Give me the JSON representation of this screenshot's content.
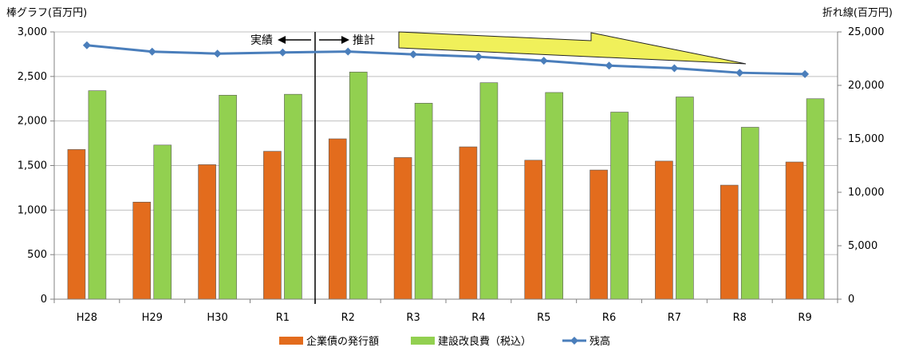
{
  "chart_data": {
    "type": "bar+line",
    "left_axis_title": "棒グラフ(百万円)",
    "right_axis_title": "折れ線(百万円)",
    "categories": [
      "H28",
      "H29",
      "H30",
      "R1",
      "R2",
      "R3",
      "R4",
      "R5",
      "R6",
      "R7",
      "R8",
      "R9"
    ],
    "left_ylim": [
      0,
      3000
    ],
    "left_ticks": [
      0,
      500,
      1000,
      1500,
      2000,
      2500,
      3000
    ],
    "left_tick_labels": [
      "0",
      "500",
      "1,000",
      "1,500",
      "2,000",
      "2,500",
      "3,000"
    ],
    "right_ylim": [
      0,
      25000
    ],
    "right_ticks": [
      0,
      5000,
      10000,
      15000,
      20000,
      25000
    ],
    "right_tick_labels": [
      "0",
      "5,000",
      "10,000",
      "15,000",
      "20,000",
      "25,000"
    ],
    "series": [
      {
        "name": "企業債の発行額",
        "type": "bar",
        "axis": "left",
        "color": "#E36C1D",
        "values": [
          1680,
          1090,
          1510,
          1660,
          1800,
          1590,
          1710,
          1560,
          1450,
          1550,
          1280,
          1540
        ]
      },
      {
        "name": "建設改良費（税込）",
        "type": "bar",
        "axis": "left",
        "color": "#92D050",
        "values": [
          2340,
          1730,
          2290,
          2300,
          2550,
          2200,
          2430,
          2320,
          2100,
          2270,
          1930,
          2250
        ]
      },
      {
        "name": "残高",
        "type": "line",
        "axis": "right",
        "color": "#4A7EBB",
        "values": [
          23750,
          23150,
          22970,
          23080,
          23160,
          22900,
          22680,
          22300,
          21850,
          21600,
          21180,
          21050
        ]
      }
    ],
    "divider_after": "R1",
    "annotations": {
      "actual": "実績",
      "forecast": "推計"
    },
    "legend_position": "bottom",
    "grid": true
  }
}
